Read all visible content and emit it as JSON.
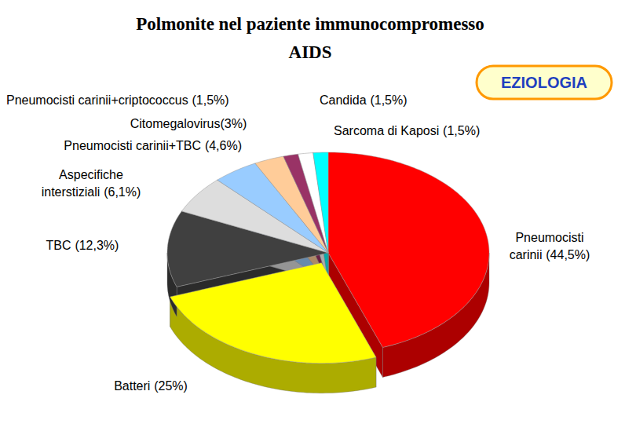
{
  "chart_data": {
    "type": "pie",
    "title": "Polmonite nel paziente immunocompromesso",
    "subtitle": "AIDS",
    "annotations": [
      "EZIOLOGIA"
    ],
    "categories": [
      "Pneumocisti carinii",
      "Batteri",
      "TBC",
      "Aspecifiche interstiziali",
      "Pneumocisti carinii+TBC",
      "Citomegalovirus",
      "Pneumocisti carinii+criptococcus",
      "Candida",
      "Sarcoma di Kaposi"
    ],
    "values": [
      44.5,
      25,
      12.3,
      6.1,
      4.6,
      3,
      1.5,
      1.5,
      1.5
    ],
    "value_labels": [
      "(44,5%)",
      "(25%)",
      "(12,3%)",
      "(6,1%)",
      "(4,6%)",
      "(3%)",
      "(1,5%)",
      "(1,5%)",
      "(1,5%)"
    ],
    "colors": [
      "#ff0000",
      "#ffff00",
      "#404040",
      "#dddddd",
      "#99ccff",
      "#ffcc99",
      "#993366",
      "#ffffff",
      "#00ffff"
    ],
    "data_labels": true
  }
}
